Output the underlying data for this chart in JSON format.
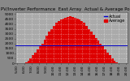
{
  "title": "Solar PV/Inverter Performance  East Array  Actual & Average Power Output",
  "bg_color": "#888888",
  "plot_bg_color": "#aaaaaa",
  "grid_color": "#ffffff",
  "bar_color": "#dd0000",
  "bar_edge_color": "#dd0000",
  "avg_line_color": "#0000cc",
  "text_color": "#000000",
  "legend_actual_color": "#0000cc",
  "legend_avg_color": "#dd0000",
  "x_labels": [
    "5:00",
    "6:00",
    "7:00",
    "8:00",
    "9:00",
    "10:00",
    "11:00",
    "12:00",
    "13:00",
    "14:00",
    "15:00",
    "16:00",
    "17:00",
    "18:00",
    "19:00",
    "20:00"
  ],
  "y_ticks": [
    0,
    500,
    1000,
    1500,
    2000,
    2500,
    3000,
    3500,
    4000,
    4500,
    5000
  ],
  "avg_power": 1800,
  "ylim": [
    0,
    5200
  ],
  "bar_heights": [
    5,
    10,
    20,
    40,
    100,
    250,
    500,
    800,
    1100,
    1400,
    1700,
    2000,
    2400,
    2800,
    3200,
    3500,
    3800,
    4100,
    4300,
    4450,
    4550,
    4650,
    4720,
    4750,
    4700,
    4650,
    4550,
    4450,
    4300,
    4100,
    3800,
    3500,
    3200,
    2900,
    2600,
    2300,
    2000,
    1700,
    1400,
    1100,
    800,
    500,
    250,
    100,
    40,
    15,
    5,
    0
  ],
  "num_bars": 48,
  "title_fontsize": 4.0,
  "tick_fontsize": 3.2,
  "legend_fontsize": 3.5
}
